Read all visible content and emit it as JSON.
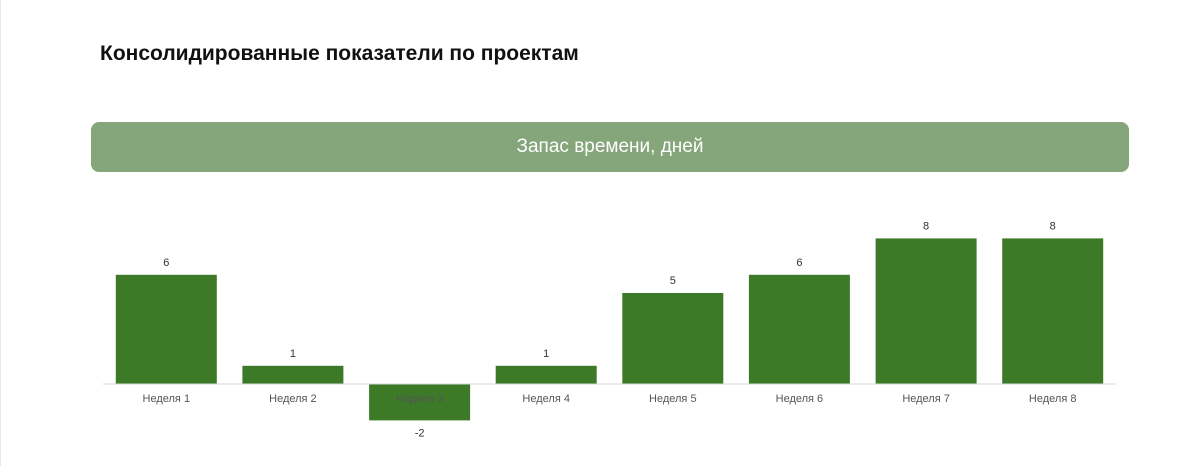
{
  "page": {
    "title": "Консолидированные показатели по проектам"
  },
  "chart_data": {
    "type": "bar",
    "title": "Запас времени, дней",
    "categories": [
      "Неделя 1",
      "Неделя 2",
      "Неделя 3",
      "Неделя 4",
      "Неделя 5",
      "Неделя 6",
      "Неделя 7",
      "Неделя 8"
    ],
    "series": [
      {
        "values": [
          6,
          1,
          -2,
          1,
          5,
          6,
          8,
          8
        ],
        "color": "#3d7a28"
      }
    ],
    "xlabel": "",
    "ylabel": "",
    "ylim": [
      -2,
      8
    ],
    "grid": false,
    "legend": "none",
    "header_color": "#85a57b",
    "axis_color": "#d4d4d4"
  }
}
